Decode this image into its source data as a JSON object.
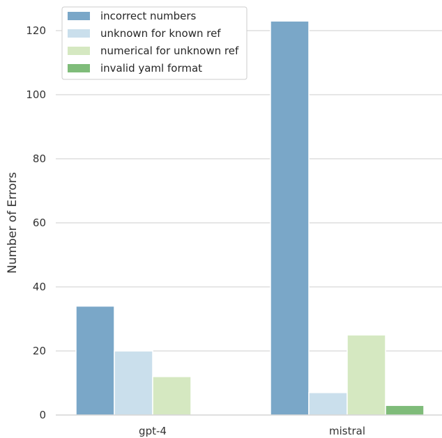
{
  "chart_data": {
    "type": "bar",
    "categories": [
      "gpt-4",
      "mistral"
    ],
    "series": [
      {
        "name": "incorrect numbers",
        "values": [
          34,
          123
        ],
        "color": "#7aa7c8"
      },
      {
        "name": "unknown for known ref",
        "values": [
          20,
          7
        ],
        "color": "#cadfec"
      },
      {
        "name": "numerical for unknown ref",
        "values": [
          12,
          25
        ],
        "color": "#d5e8c1"
      },
      {
        "name": "invalid yaml format",
        "values": [
          0,
          3
        ],
        "color": "#7fbc7a"
      }
    ],
    "title": "",
    "xlabel": "",
    "ylabel": "Number of Errors",
    "ylim": [
      0,
      128
    ],
    "yticks": [
      0,
      20,
      40,
      60,
      80,
      100,
      120
    ],
    "grid": true,
    "legend_position": "top-left"
  }
}
